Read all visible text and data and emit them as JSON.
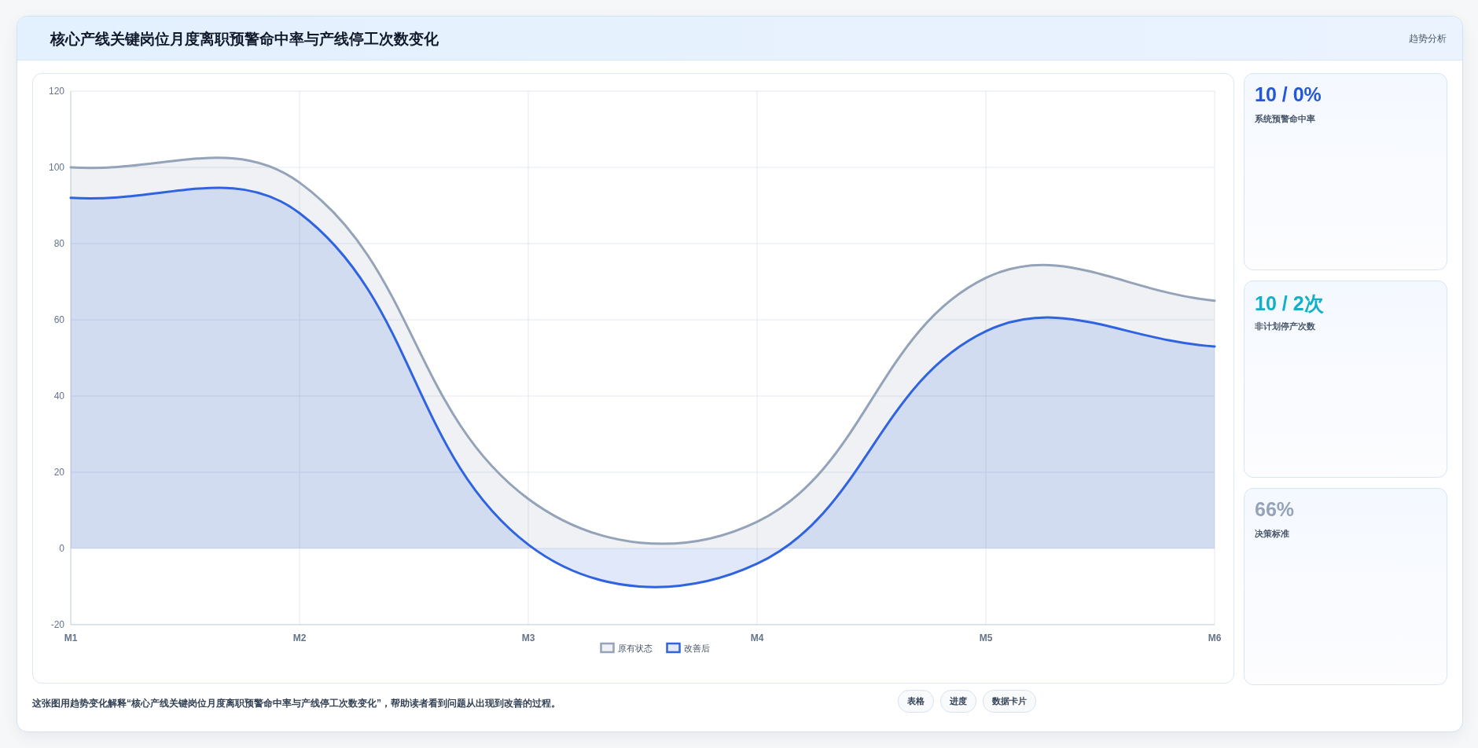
{
  "chart_data": [
    {
      "type": "area",
      "title": "核心产线关键岗位月度离职预警命中率与产线停工次数变化",
      "categories": [
        "M1",
        "M2",
        "M3",
        "M4",
        "M5",
        "M6"
      ],
      "series": [
        {
          "name": "原有状态",
          "color": "#94a3b8",
          "values": [
            100,
            96,
            13,
            7,
            71,
            65
          ]
        },
        {
          "name": "改善后",
          "color": "#2f63e0",
          "values": [
            92,
            88,
            1,
            -4,
            57,
            53
          ]
        }
      ],
      "ylim": [
        -20,
        120
      ],
      "yticks": [
        -20,
        0,
        20,
        40,
        60,
        80,
        100,
        120
      ],
      "grid": true,
      "legend": "bottom",
      "marker": "none",
      "line_style": "solid",
      "annotations": [
        "趋势分析",
        "这张图用趋势变化解释“核心产线关键岗位月度离职预警命中率与产线停工次数变化”，帮助读者看到问题从出现到改善的过程。",
        "表格",
        "进度",
        "数据卡片"
      ]
    },
    {
      "type": "other",
      "annotations": [
        "10 / 0%",
        "系统预警命中率",
        "10 / 2次",
        "非计划停产次数",
        "66%",
        "决策标准"
      ]
    }
  ]
}
